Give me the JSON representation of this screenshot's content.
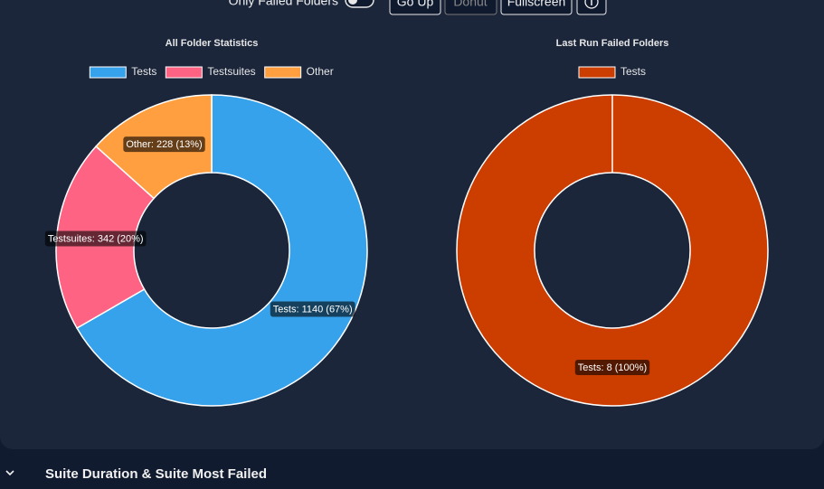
{
  "toolbar": {
    "toggle_label": "Only Failed Folders",
    "buttons": [
      "Go Up",
      "Donut",
      "Fullscreen"
    ]
  },
  "chart_data": [
    {
      "type": "donut",
      "title": "All Folder Statistics",
      "categories": [
        "Tests",
        "Testsuites",
        "Other"
      ],
      "values": [
        1140,
        342,
        228
      ],
      "value_labels": [
        "Tests: 1140 (67%)",
        "Testsuites: 342 (20%)",
        "Other: 228 (13%)"
      ],
      "colors": [
        "#36a2eb",
        "#ff6384",
        "#ff9f40"
      ]
    },
    {
      "type": "donut",
      "title": "Last Run Failed Folders",
      "categories": [
        "Tests"
      ],
      "values": [
        8
      ],
      "value_labels": [
        "Tests: 8 (100%)"
      ],
      "colors": [
        "#cc3d00"
      ]
    }
  ],
  "section": {
    "title": "Suite Duration & Suite Most Failed"
  }
}
